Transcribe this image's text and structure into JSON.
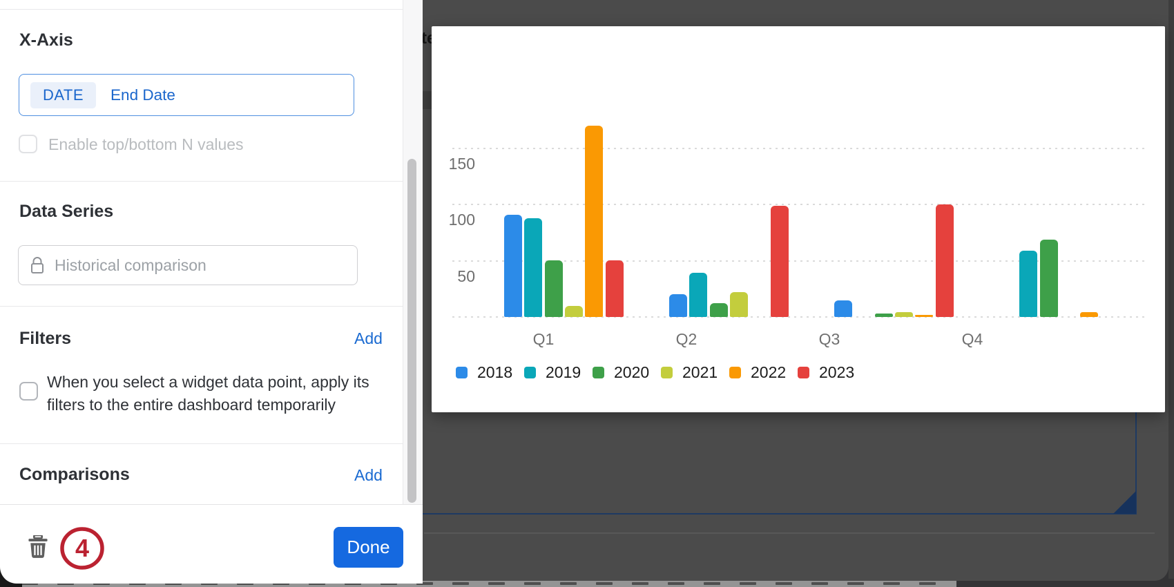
{
  "panel": {
    "x_axis": {
      "title": "X-Axis",
      "segments": {
        "selected": "DATE",
        "alt": "End Date"
      },
      "checkbox_label": "Enable top/bottom N values",
      "checkbox_checked": false,
      "checkbox_disabled": true
    },
    "data_series": {
      "title": "Data Series",
      "lock_icon": "lock-icon",
      "locked_placeholder": "Historical comparison"
    },
    "filters": {
      "title": "Filters",
      "add_label": "Add",
      "checkbox_label": "When you select a widget data point, apply its filters to the entire dashboard temporarily",
      "checkbox_checked": false
    },
    "comparisons": {
      "title": "Comparisons",
      "add_label": "Add"
    },
    "footer": {
      "delete_icon": "trash-icon",
      "annotation_badge": "4",
      "done_label": "Done"
    }
  },
  "backdrop": {
    "clipped_text": "te"
  },
  "theme": {
    "accent_blue": "#1569E0",
    "link_blue": "#1A6AD1",
    "annotation_red": "#BB2231",
    "selected_widget_outline": "#1E3A63",
    "backdrop_gray": "#4B4B4B"
  },
  "chart_data": {
    "type": "bar",
    "categories": [
      "Q1",
      "Q2",
      "Q3",
      "Q4"
    ],
    "series": [
      {
        "name": "2018",
        "color": "#2C8BE8",
        "values": [
          91,
          20,
          15,
          0
        ]
      },
      {
        "name": "2019",
        "color": "#0AA7B8",
        "values": [
          88,
          39,
          0,
          59
        ]
      },
      {
        "name": "2020",
        "color": "#3EA049",
        "values": [
          50,
          12,
          3,
          69
        ]
      },
      {
        "name": "2021",
        "color": "#C3CD3D",
        "values": [
          10,
          22,
          4,
          0
        ]
      },
      {
        "name": "2022",
        "color": "#FA9903",
        "values": [
          170,
          0,
          2,
          4
        ]
      },
      {
        "name": "2023",
        "color": "#E5413D",
        "values": [
          50,
          99,
          100,
          0
        ]
      }
    ],
    "yticks": [
      150,
      100,
      50
    ],
    "ylim": [
      0,
      190
    ],
    "grid": "horizontal-dotted",
    "legend_position": "bottom"
  }
}
